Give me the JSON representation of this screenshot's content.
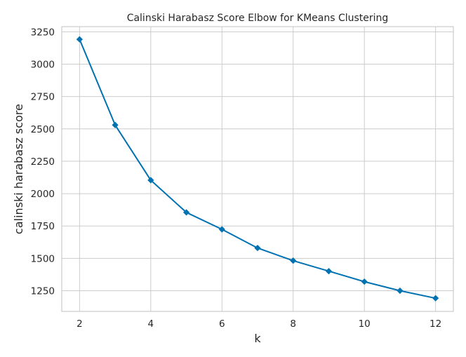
{
  "chart_data": {
    "type": "line",
    "title": "Calinski Harabasz Score Elbow for KMeans Clustering",
    "xlabel": "k",
    "ylabel": "calinski harabasz score",
    "x": [
      2,
      3,
      4,
      5,
      6,
      7,
      8,
      9,
      10,
      11,
      12
    ],
    "series": [
      {
        "values": [
          3192,
          2530,
          2104,
          1855,
          1724,
          1580,
          1482,
          1401,
          1320,
          1250,
          1192
        ],
        "color": "#0072b2",
        "marker": "diamond-icon"
      }
    ],
    "xlim": [
      1.5,
      12.5
    ],
    "ylim": [
      1090,
      3290
    ],
    "xticks": [
      2,
      4,
      6,
      8,
      10,
      12
    ],
    "yticks": [
      1250,
      1500,
      1750,
      2000,
      2250,
      2500,
      2750,
      3000,
      3250
    ],
    "grid": true,
    "legend": "none"
  }
}
